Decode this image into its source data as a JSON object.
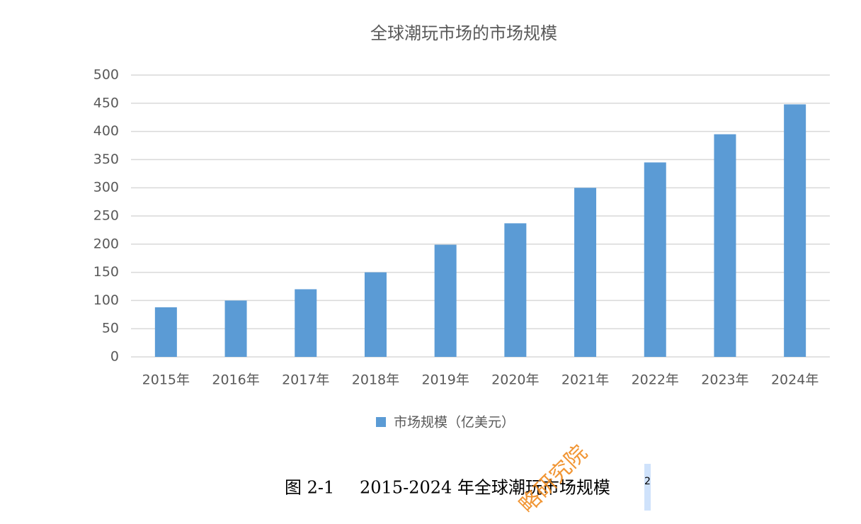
{
  "chart_data": {
    "type": "bar",
    "title": "全球潮玩市场的市场规模",
    "categories": [
      "2015年",
      "2016年",
      "2017年",
      "2018年",
      "2019年",
      "2020年",
      "2021年",
      "2022年",
      "2023年",
      "2024年"
    ],
    "series": [
      {
        "name": "市场规模（亿美元）",
        "color": "#5b9bd5",
        "values": [
          88,
          100,
          120,
          150,
          199,
          237,
          300,
          345,
          395,
          448
        ]
      }
    ],
    "ylim": [
      0,
      500
    ],
    "yticks": [
      0,
      50,
      100,
      150,
      200,
      250,
      300,
      350,
      400,
      450,
      500
    ],
    "grid": true,
    "legend": "bottom"
  },
  "caption": {
    "label": "图 2-1",
    "text": "2015-2024 年全球潮玩市场规模",
    "footnote": "2"
  },
  "watermark": "略研究院"
}
